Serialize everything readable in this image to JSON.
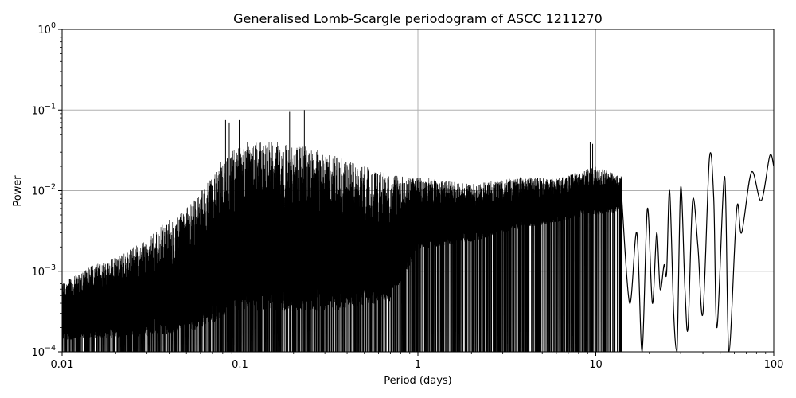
{
  "chart_data": {
    "type": "line",
    "title": "Generalised Lomb-Scargle periodogram of ASCC 1211270",
    "xlabel": "Period (days)",
    "ylabel": "Power",
    "x_scale": "log",
    "y_scale": "log",
    "xlim": [
      0.01,
      100
    ],
    "ylim": [
      0.0001,
      1
    ],
    "grid": true,
    "line_color": "#000000",
    "x_ticks": [
      {
        "value": 0.01,
        "label": "0.01"
      },
      {
        "value": 0.1,
        "label": "0.1"
      },
      {
        "value": 1,
        "label": "1"
      },
      {
        "value": 10,
        "label": "10"
      },
      {
        "value": 100,
        "label": "100"
      }
    ],
    "y_ticks": [
      {
        "value": 0.0001,
        "base": "10",
        "exp": "−4"
      },
      {
        "value": 0.001,
        "base": "10",
        "exp": "−3"
      },
      {
        "value": 0.01,
        "base": "10",
        "exp": "−2"
      },
      {
        "value": 0.1,
        "base": "10",
        "exp": "−1"
      },
      {
        "value": 1,
        "base": "10",
        "exp": "0"
      }
    ],
    "envelope": [
      {
        "period": 0.01,
        "power": 0.0007
      },
      {
        "period": 0.012,
        "power": 0.0009
      },
      {
        "period": 0.015,
        "power": 0.0012
      },
      {
        "period": 0.02,
        "power": 0.0015
      },
      {
        "period": 0.03,
        "power": 0.0025
      },
      {
        "period": 0.04,
        "power": 0.0045
      },
      {
        "period": 0.05,
        "power": 0.006
      },
      {
        "period": 0.06,
        "power": 0.01
      },
      {
        "period": 0.08,
        "power": 0.025
      },
      {
        "period": 0.1,
        "power": 0.04
      },
      {
        "period": 0.15,
        "power": 0.04
      },
      {
        "period": 0.2,
        "power": 0.04
      },
      {
        "period": 0.3,
        "power": 0.03
      },
      {
        "period": 0.5,
        "power": 0.02
      },
      {
        "period": 0.8,
        "power": 0.015
      },
      {
        "period": 1.0,
        "power": 0.015
      },
      {
        "period": 2.0,
        "power": 0.012
      },
      {
        "period": 4.0,
        "power": 0.015
      },
      {
        "period": 6.0,
        "power": 0.014
      },
      {
        "period": 10.0,
        "power": 0.02
      },
      {
        "period": 14.0,
        "power": 0.015
      }
    ],
    "floor": [
      {
        "period": 0.01,
        "power": 0.00012
      },
      {
        "period": 0.05,
        "power": 0.00012
      },
      {
        "period": 0.1,
        "power": 0.0002
      },
      {
        "period": 0.3,
        "power": 0.0002
      },
      {
        "period": 0.7,
        "power": 0.0003
      },
      {
        "period": 1.0,
        "power": 0.0015
      },
      {
        "period": 2.0,
        "power": 0.002
      },
      {
        "period": 4.0,
        "power": 0.003
      },
      {
        "period": 8.0,
        "power": 0.004
      },
      {
        "period": 14.0,
        "power": 0.005
      }
    ],
    "peaks": [
      {
        "period": 0.083,
        "power": 0.075
      },
      {
        "period": 0.087,
        "power": 0.07
      },
      {
        "period": 0.099,
        "power": 0.075
      },
      {
        "period": 0.19,
        "power": 0.095
      },
      {
        "period": 0.23,
        "power": 0.1
      },
      {
        "period": 9.3,
        "power": 0.04
      },
      {
        "period": 9.6,
        "power": 0.038
      }
    ],
    "long_period_curve": [
      {
        "period": 14.0,
        "power": 0.008
      },
      {
        "period": 15.5,
        "power": 0.0004
      },
      {
        "period": 17.0,
        "power": 0.003
      },
      {
        "period": 18.2,
        "power": 9e-05
      },
      {
        "period": 19.5,
        "power": 0.006
      },
      {
        "period": 20.8,
        "power": 0.0004
      },
      {
        "period": 22.0,
        "power": 0.003
      },
      {
        "period": 23.0,
        "power": 0.0006
      },
      {
        "period": 24.2,
        "power": 0.0012
      },
      {
        "period": 25.0,
        "power": 0.00095
      },
      {
        "period": 26.0,
        "power": 0.01
      },
      {
        "period": 27.4,
        "power": 0.0003
      },
      {
        "period": 28.6,
        "power": 9e-05
      },
      {
        "period": 30.0,
        "power": 0.011
      },
      {
        "period": 31.7,
        "power": 0.0006
      },
      {
        "period": 33.0,
        "power": 0.0002
      },
      {
        "period": 35.0,
        "power": 0.0075
      },
      {
        "period": 37.5,
        "power": 0.002
      },
      {
        "period": 40.0,
        "power": 0.0003
      },
      {
        "period": 43.5,
        "power": 0.025
      },
      {
        "period": 46.0,
        "power": 0.008
      },
      {
        "period": 48.0,
        "power": 0.0002
      },
      {
        "period": 53.0,
        "power": 0.015
      },
      {
        "period": 56.0,
        "power": 0.0001
      },
      {
        "period": 62.0,
        "power": 0.006
      },
      {
        "period": 66.0,
        "power": 0.003
      },
      {
        "period": 75.0,
        "power": 0.017
      },
      {
        "period": 85.0,
        "power": 0.0075
      },
      {
        "period": 95.0,
        "power": 0.027
      },
      {
        "period": 100.0,
        "power": 0.02
      }
    ]
  }
}
